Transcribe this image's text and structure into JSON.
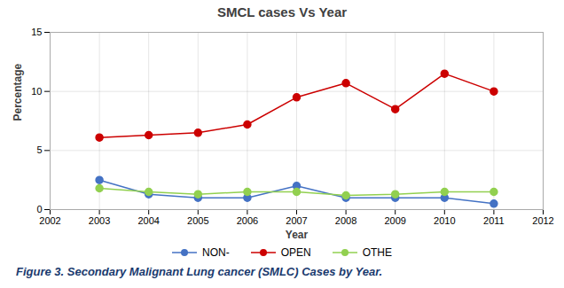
{
  "chart_data": {
    "type": "line",
    "title": "SMCL cases Vs Year",
    "xlabel": "Year",
    "ylabel": "Percentage",
    "caption": "Figure 3. Secondary Malignant Lung cancer (SMLC) Cases by Year.",
    "x": [
      2003,
      2004,
      2005,
      2006,
      2007,
      2008,
      2009,
      2010,
      2011
    ],
    "xlim": [
      2002,
      2012
    ],
    "xticks": [
      2002,
      2003,
      2004,
      2005,
      2006,
      2007,
      2008,
      2009,
      2010,
      2011,
      2012
    ],
    "ylim": [
      0,
      15
    ],
    "yticks": [
      0,
      5,
      10,
      15
    ],
    "grid": true,
    "legend": "bottom",
    "series": [
      {
        "name": "NON-",
        "color": "#4472C4",
        "marker": "o",
        "values": [
          2.5,
          1.3,
          1.0,
          1.0,
          2.0,
          1.0,
          1.0,
          1.0,
          0.5
        ]
      },
      {
        "name": "OPEN",
        "color": "#CC0000",
        "marker": "o",
        "values": [
          6.1,
          6.3,
          6.5,
          7.2,
          9.5,
          10.7,
          8.5,
          11.5,
          10.0
        ]
      },
      {
        "name": "OTHE",
        "color": "#92D050",
        "marker": "o",
        "values": [
          1.8,
          1.5,
          1.3,
          1.5,
          1.5,
          1.2,
          1.3,
          1.5,
          1.5
        ]
      }
    ]
  }
}
